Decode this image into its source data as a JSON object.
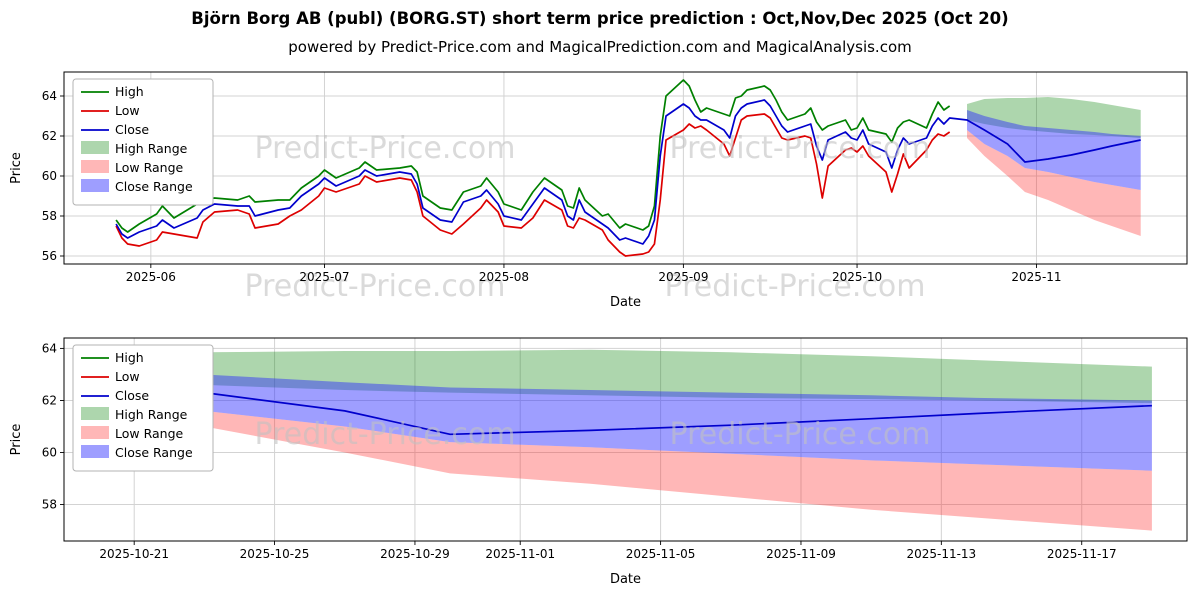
{
  "title": "Björn Borg AB (publ) (BORG.ST) short term price prediction : Oct,Nov,Dec 2025 (Oct 20)",
  "subtitle": "powered by Predict-Price.com and MagicalPrediction.com and MagicalAnalysis.com",
  "watermark": "Predict-Price.com",
  "chart_data": [
    {
      "type": "line",
      "xlabel": "Date",
      "ylabel": "Price",
      "xlim": [
        "2025-05-17",
        "2025-11-27"
      ],
      "ylim": [
        55.6,
        65.2
      ],
      "yticks": [
        56,
        58,
        60,
        62,
        64
      ],
      "xticks": [
        {
          "v": "2025-06-01",
          "label": "2025-06"
        },
        {
          "v": "2025-07-01",
          "label": "2025-07"
        },
        {
          "v": "2025-08-01",
          "label": "2025-08"
        },
        {
          "v": "2025-09-01",
          "label": "2025-09"
        },
        {
          "v": "2025-10-01",
          "label": "2025-10"
        },
        {
          "v": "2025-11-01",
          "label": "2025-11"
        }
      ],
      "bands": [
        {
          "name": "High Range",
          "color": "rgba(0,128,0,0.32)",
          "x": [
            "2025-10-20",
            "2025-10-23",
            "2025-10-27",
            "2025-10-30",
            "2025-11-03",
            "2025-11-07",
            "2025-11-11",
            "2025-11-14",
            "2025-11-19"
          ],
          "upper": [
            63.6,
            63.85,
            63.9,
            63.9,
            63.95,
            63.85,
            63.7,
            63.55,
            63.3
          ],
          "lower": [
            62.8,
            62.6,
            62.4,
            62.3,
            62.2,
            62.1,
            62.05,
            62.0,
            61.9
          ]
        },
        {
          "name": "Low Range",
          "color": "rgba(255,30,30,0.32)",
          "x": [
            "2025-10-20",
            "2025-10-23",
            "2025-10-27",
            "2025-10-30",
            "2025-11-03",
            "2025-11-07",
            "2025-11-11",
            "2025-11-14",
            "2025-11-19"
          ],
          "upper": [
            62.3,
            61.6,
            61.0,
            60.4,
            60.2,
            59.95,
            59.7,
            59.55,
            59.3
          ],
          "lower": [
            61.9,
            61.0,
            60.0,
            59.2,
            58.8,
            58.3,
            57.8,
            57.5,
            57.0
          ]
        },
        {
          "name": "Close Range",
          "color": "rgba(40,40,255,0.45)",
          "x": [
            "2025-10-20",
            "2025-10-23",
            "2025-10-27",
            "2025-10-30",
            "2025-11-03",
            "2025-11-07",
            "2025-11-11",
            "2025-11-14",
            "2025-11-19"
          ],
          "upper": [
            63.3,
            63.0,
            62.7,
            62.5,
            62.4,
            62.3,
            62.2,
            62.1,
            62.0
          ],
          "lower": [
            62.3,
            61.6,
            61.0,
            60.4,
            60.2,
            59.95,
            59.7,
            59.55,
            59.3
          ]
        }
      ],
      "lines": [
        {
          "name": "High",
          "color": "#008000",
          "x": [
            "2025-05-26",
            "2025-05-27",
            "2025-05-28",
            "2025-05-30",
            "2025-06-02",
            "2025-06-03",
            "2025-06-05",
            "2025-06-09",
            "2025-06-10",
            "2025-06-12",
            "2025-06-16",
            "2025-06-18",
            "2025-06-19",
            "2025-06-23",
            "2025-06-25",
            "2025-06-27",
            "2025-06-30",
            "2025-07-01",
            "2025-07-03",
            "2025-07-07",
            "2025-07-08",
            "2025-07-10",
            "2025-07-14",
            "2025-07-16",
            "2025-07-17",
            "2025-07-18",
            "2025-07-21",
            "2025-07-23",
            "2025-07-25",
            "2025-07-28",
            "2025-07-29",
            "2025-07-31",
            "2025-08-01",
            "2025-08-04",
            "2025-08-06",
            "2025-08-08",
            "2025-08-11",
            "2025-08-12",
            "2025-08-13",
            "2025-08-14",
            "2025-08-15",
            "2025-08-18",
            "2025-08-19",
            "2025-08-21",
            "2025-08-22",
            "2025-08-25",
            "2025-08-26",
            "2025-08-27",
            "2025-08-28",
            "2025-08-29",
            "2025-09-01",
            "2025-09-02",
            "2025-09-03",
            "2025-09-04",
            "2025-09-05",
            "2025-09-08",
            "2025-09-09",
            "2025-09-10",
            "2025-09-11",
            "2025-09-12",
            "2025-09-15",
            "2025-09-16",
            "2025-09-17",
            "2025-09-18",
            "2025-09-19",
            "2025-09-22",
            "2025-09-23",
            "2025-09-24",
            "2025-09-25",
            "2025-09-26",
            "2025-09-29",
            "2025-09-30",
            "2025-10-01",
            "2025-10-02",
            "2025-10-03",
            "2025-10-06",
            "2025-10-07",
            "2025-10-08",
            "2025-10-09",
            "2025-10-10",
            "2025-10-13",
            "2025-10-14",
            "2025-10-15",
            "2025-10-16",
            "2025-10-17"
          ],
          "y": [
            57.8,
            57.4,
            57.2,
            57.6,
            58.1,
            58.5,
            57.9,
            58.6,
            58.8,
            58.9,
            58.8,
            59.0,
            58.7,
            58.8,
            58.8,
            59.4,
            60.0,
            60.3,
            59.9,
            60.4,
            60.7,
            60.3,
            60.4,
            60.5,
            60.2,
            59.0,
            58.4,
            58.3,
            59.2,
            59.5,
            59.9,
            59.2,
            58.6,
            58.3,
            59.2,
            59.9,
            59.3,
            58.5,
            58.4,
            59.4,
            58.8,
            58.0,
            58.1,
            57.4,
            57.6,
            57.3,
            57.5,
            58.5,
            62.0,
            64.0,
            64.8,
            64.5,
            63.8,
            63.2,
            63.4,
            63.1,
            63.0,
            63.9,
            64.0,
            64.3,
            64.5,
            64.3,
            63.8,
            63.2,
            62.8,
            63.1,
            63.4,
            62.7,
            62.3,
            62.5,
            62.8,
            62.3,
            62.4,
            62.9,
            62.3,
            62.1,
            61.7,
            62.4,
            62.7,
            62.8,
            62.4,
            63.1,
            63.7,
            63.3,
            63.5
          ]
        },
        {
          "name": "Low",
          "color": "#dd0000",
          "x": [
            "2025-05-26",
            "2025-05-27",
            "2025-05-28",
            "2025-05-30",
            "2025-06-02",
            "2025-06-03",
            "2025-06-05",
            "2025-06-09",
            "2025-06-10",
            "2025-06-12",
            "2025-06-16",
            "2025-06-18",
            "2025-06-19",
            "2025-06-23",
            "2025-06-25",
            "2025-06-27",
            "2025-06-30",
            "2025-07-01",
            "2025-07-03",
            "2025-07-07",
            "2025-07-08",
            "2025-07-10",
            "2025-07-14",
            "2025-07-16",
            "2025-07-17",
            "2025-07-18",
            "2025-07-21",
            "2025-07-23",
            "2025-07-25",
            "2025-07-28",
            "2025-07-29",
            "2025-07-31",
            "2025-08-01",
            "2025-08-04",
            "2025-08-06",
            "2025-08-08",
            "2025-08-11",
            "2025-08-12",
            "2025-08-13",
            "2025-08-14",
            "2025-08-15",
            "2025-08-18",
            "2025-08-19",
            "2025-08-21",
            "2025-08-22",
            "2025-08-25",
            "2025-08-26",
            "2025-08-27",
            "2025-08-28",
            "2025-08-29",
            "2025-09-01",
            "2025-09-02",
            "2025-09-03",
            "2025-09-04",
            "2025-09-05",
            "2025-09-08",
            "2025-09-09",
            "2025-09-10",
            "2025-09-11",
            "2025-09-12",
            "2025-09-15",
            "2025-09-16",
            "2025-09-17",
            "2025-09-18",
            "2025-09-19",
            "2025-09-22",
            "2025-09-23",
            "2025-09-24",
            "2025-09-25",
            "2025-09-26",
            "2025-09-29",
            "2025-09-30",
            "2025-10-01",
            "2025-10-02",
            "2025-10-03",
            "2025-10-06",
            "2025-10-07",
            "2025-10-08",
            "2025-10-09",
            "2025-10-10",
            "2025-10-13",
            "2025-10-14",
            "2025-10-15",
            "2025-10-16",
            "2025-10-17"
          ],
          "y": [
            57.5,
            56.9,
            56.6,
            56.5,
            56.8,
            57.2,
            57.1,
            56.9,
            57.7,
            58.2,
            58.3,
            58.1,
            57.4,
            57.6,
            58.0,
            58.3,
            59.0,
            59.4,
            59.2,
            59.6,
            60.0,
            59.7,
            59.9,
            59.8,
            59.2,
            58.0,
            57.3,
            57.1,
            57.6,
            58.4,
            58.8,
            58.2,
            57.5,
            57.4,
            57.9,
            58.8,
            58.3,
            57.5,
            57.4,
            57.9,
            57.8,
            57.3,
            56.8,
            56.2,
            56.0,
            56.1,
            56.2,
            56.6,
            58.8,
            61.8,
            62.3,
            62.6,
            62.4,
            62.5,
            62.3,
            61.6,
            61.0,
            61.9,
            62.8,
            63.0,
            63.1,
            62.9,
            62.4,
            61.9,
            61.8,
            62.0,
            61.9,
            60.6,
            58.9,
            60.5,
            61.3,
            61.4,
            61.2,
            61.5,
            61.0,
            60.2,
            59.2,
            60.1,
            61.1,
            60.4,
            61.3,
            61.8,
            62.1,
            62.0,
            62.2
          ]
        },
        {
          "name": "Close",
          "color": "#0000cc",
          "x": [
            "2025-05-26",
            "2025-05-27",
            "2025-05-28",
            "2025-05-30",
            "2025-06-02",
            "2025-06-03",
            "2025-06-05",
            "2025-06-09",
            "2025-06-10",
            "2025-06-12",
            "2025-06-16",
            "2025-06-18",
            "2025-06-19",
            "2025-06-23",
            "2025-06-25",
            "2025-06-27",
            "2025-06-30",
            "2025-07-01",
            "2025-07-03",
            "2025-07-07",
            "2025-07-08",
            "2025-07-10",
            "2025-07-14",
            "2025-07-16",
            "2025-07-17",
            "2025-07-18",
            "2025-07-21",
            "2025-07-23",
            "2025-07-25",
            "2025-07-28",
            "2025-07-29",
            "2025-07-31",
            "2025-08-01",
            "2025-08-04",
            "2025-08-06",
            "2025-08-08",
            "2025-08-11",
            "2025-08-12",
            "2025-08-13",
            "2025-08-14",
            "2025-08-15",
            "2025-08-18",
            "2025-08-19",
            "2025-08-21",
            "2025-08-22",
            "2025-08-25",
            "2025-08-26",
            "2025-08-27",
            "2025-08-28",
            "2025-08-29",
            "2025-09-01",
            "2025-09-02",
            "2025-09-03",
            "2025-09-04",
            "2025-09-05",
            "2025-09-08",
            "2025-09-09",
            "2025-09-10",
            "2025-09-11",
            "2025-09-12",
            "2025-09-15",
            "2025-09-16",
            "2025-09-17",
            "2025-09-18",
            "2025-09-19",
            "2025-09-22",
            "2025-09-23",
            "2025-09-24",
            "2025-09-25",
            "2025-09-26",
            "2025-09-29",
            "2025-09-30",
            "2025-10-01",
            "2025-10-02",
            "2025-10-03",
            "2025-10-06",
            "2025-10-07",
            "2025-10-08",
            "2025-10-09",
            "2025-10-10",
            "2025-10-13",
            "2025-10-14",
            "2025-10-15",
            "2025-10-16",
            "2025-10-17",
            "2025-10-20",
            "2025-10-23",
            "2025-10-27",
            "2025-10-30",
            "2025-11-03",
            "2025-11-07",
            "2025-11-11",
            "2025-11-14",
            "2025-11-19"
          ],
          "y": [
            57.6,
            57.1,
            56.9,
            57.2,
            57.5,
            57.8,
            57.4,
            57.9,
            58.3,
            58.6,
            58.5,
            58.5,
            58.0,
            58.3,
            58.4,
            59.0,
            59.6,
            59.9,
            59.5,
            60.0,
            60.3,
            60.0,
            60.2,
            60.1,
            59.6,
            58.4,
            57.8,
            57.7,
            58.7,
            59.0,
            59.3,
            58.6,
            58.0,
            57.8,
            58.6,
            59.4,
            58.8,
            58.0,
            57.8,
            58.8,
            58.2,
            57.6,
            57.4,
            56.8,
            56.9,
            56.6,
            57.0,
            57.8,
            61.0,
            63.0,
            63.6,
            63.4,
            63.0,
            62.8,
            62.8,
            62.3,
            61.9,
            63.0,
            63.4,
            63.6,
            63.8,
            63.5,
            63.0,
            62.5,
            62.2,
            62.5,
            62.6,
            61.5,
            60.8,
            61.8,
            62.2,
            61.9,
            61.8,
            62.3,
            61.6,
            61.2,
            60.4,
            61.3,
            61.9,
            61.6,
            61.9,
            62.5,
            62.9,
            62.6,
            62.9,
            62.8,
            62.3,
            61.6,
            60.7,
            60.85,
            61.05,
            61.3,
            61.5,
            61.8
          ]
        }
      ]
    },
    {
      "type": "line",
      "xlabel": "Date",
      "ylabel": "Price",
      "xlim": [
        "2025-10-19",
        "2025-11-20"
      ],
      "ylim": [
        56.6,
        64.4
      ],
      "yticks": [
        58,
        60,
        62,
        64
      ],
      "xticks": [
        {
          "v": "2025-10-21",
          "label": "2025-10-21"
        },
        {
          "v": "2025-10-25",
          "label": "2025-10-25"
        },
        {
          "v": "2025-10-29",
          "label": "2025-10-29"
        },
        {
          "v": "2025-11-01",
          "label": "2025-11-01"
        },
        {
          "v": "2025-11-05",
          "label": "2025-11-05"
        },
        {
          "v": "2025-11-09",
          "label": "2025-11-09"
        },
        {
          "v": "2025-11-13",
          "label": "2025-11-13"
        },
        {
          "v": "2025-11-17",
          "label": "2025-11-17"
        }
      ],
      "bands": [
        {
          "name": "High Range",
          "color": "rgba(0,128,0,0.32)",
          "x": [
            "2025-10-20",
            "2025-10-23",
            "2025-10-27",
            "2025-10-30",
            "2025-11-03",
            "2025-11-07",
            "2025-11-11",
            "2025-11-14",
            "2025-11-19"
          ],
          "upper": [
            63.6,
            63.85,
            63.9,
            63.9,
            63.95,
            63.85,
            63.7,
            63.55,
            63.3
          ],
          "lower": [
            62.8,
            62.6,
            62.4,
            62.3,
            62.2,
            62.1,
            62.05,
            62.0,
            61.9
          ]
        },
        {
          "name": "Low Range",
          "color": "rgba(255,30,30,0.32)",
          "x": [
            "2025-10-20",
            "2025-10-23",
            "2025-10-27",
            "2025-10-30",
            "2025-11-03",
            "2025-11-07",
            "2025-11-11",
            "2025-11-14",
            "2025-11-19"
          ],
          "upper": [
            62.3,
            61.6,
            61.0,
            60.4,
            60.2,
            59.95,
            59.7,
            59.55,
            59.3
          ],
          "lower": [
            61.9,
            61.0,
            60.0,
            59.2,
            58.8,
            58.3,
            57.8,
            57.5,
            57.0
          ]
        },
        {
          "name": "Close Range",
          "color": "rgba(40,40,255,0.45)",
          "x": [
            "2025-10-20",
            "2025-10-23",
            "2025-10-27",
            "2025-10-30",
            "2025-11-03",
            "2025-11-07",
            "2025-11-11",
            "2025-11-14",
            "2025-11-19"
          ],
          "upper": [
            63.3,
            63.0,
            62.7,
            62.5,
            62.4,
            62.3,
            62.2,
            62.1,
            62.0
          ],
          "lower": [
            62.3,
            61.6,
            61.0,
            60.4,
            60.2,
            59.95,
            59.7,
            59.55,
            59.3
          ]
        }
      ],
      "lines": [
        {
          "name": "High",
          "color": "#008000",
          "x": [],
          "y": []
        },
        {
          "name": "Low",
          "color": "#dd0000",
          "x": [],
          "y": []
        },
        {
          "name": "Close",
          "color": "#0000cc",
          "x": [
            "2025-10-20",
            "2025-10-23",
            "2025-10-27",
            "2025-10-30",
            "2025-11-03",
            "2025-11-07",
            "2025-11-11",
            "2025-11-14",
            "2025-11-19"
          ],
          "y": [
            62.8,
            62.3,
            61.6,
            60.7,
            60.85,
            61.05,
            61.3,
            61.5,
            61.8
          ]
        }
      ]
    }
  ]
}
